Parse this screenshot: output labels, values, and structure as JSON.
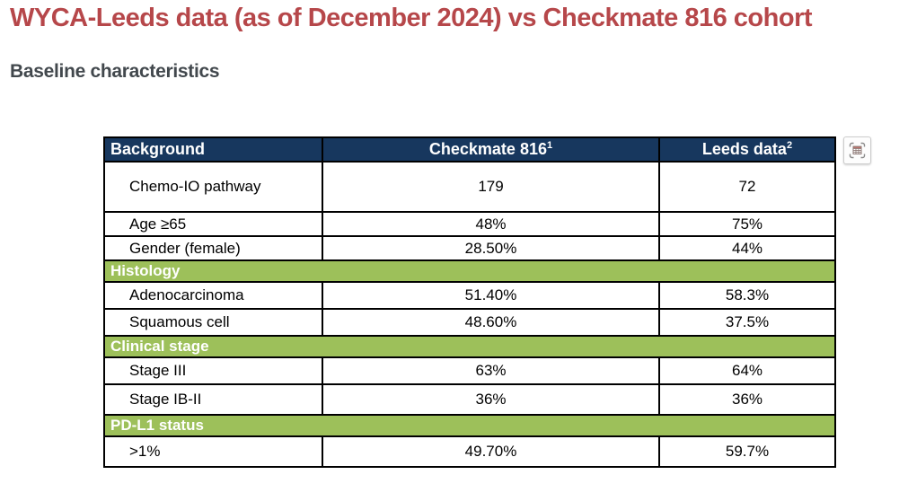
{
  "page": {
    "title": "WYCA-Leeds data (as of December 2024) vs Checkmate 816 cohort",
    "subtitle": "Baseline characteristics"
  },
  "colors": {
    "title_red": "#b6474a",
    "header_navy": "#17375e",
    "section_green": "#9dc05a",
    "subtitle_gray": "#42484d",
    "grid_black": "#000000"
  },
  "table": {
    "columns": [
      {
        "label": "Background",
        "superscript": ""
      },
      {
        "label": "Checkmate 816",
        "superscript": "1"
      },
      {
        "label": "Leeds data",
        "superscript": "2"
      }
    ],
    "rows": [
      {
        "type": "data",
        "size": "tall",
        "label": "Chemo-IO pathway",
        "checkmate": "179",
        "leeds": "72"
      },
      {
        "type": "data",
        "size": "short",
        "label": "Age ≥65",
        "checkmate": "48%",
        "leeds": "75%"
      },
      {
        "type": "data",
        "size": "short",
        "label": "Gender (female)",
        "checkmate": "28.50%",
        "leeds": "44%"
      },
      {
        "type": "section",
        "label": "Histology"
      },
      {
        "type": "data",
        "size": "",
        "label": "Adenocarcinoma",
        "checkmate": "51.40%",
        "leeds": "58.3%"
      },
      {
        "type": "data",
        "size": "",
        "label": "Squamous cell",
        "checkmate": "48.60%",
        "leeds": "37.5%"
      },
      {
        "type": "section",
        "label": "Clinical stage"
      },
      {
        "type": "data",
        "size": "",
        "label": "Stage III",
        "checkmate": "63%",
        "leeds": "64%"
      },
      {
        "type": "data",
        "size": "last",
        "label": "Stage IB-II",
        "checkmate": "36%",
        "leeds": "36%"
      },
      {
        "type": "section",
        "label": "PD-L1 status"
      },
      {
        "type": "data",
        "size": "last",
        "label": ">1%",
        "checkmate": "49.70%",
        "leeds": "59.7%"
      }
    ]
  },
  "widgets": {
    "table_tool_button": "table-selection"
  }
}
